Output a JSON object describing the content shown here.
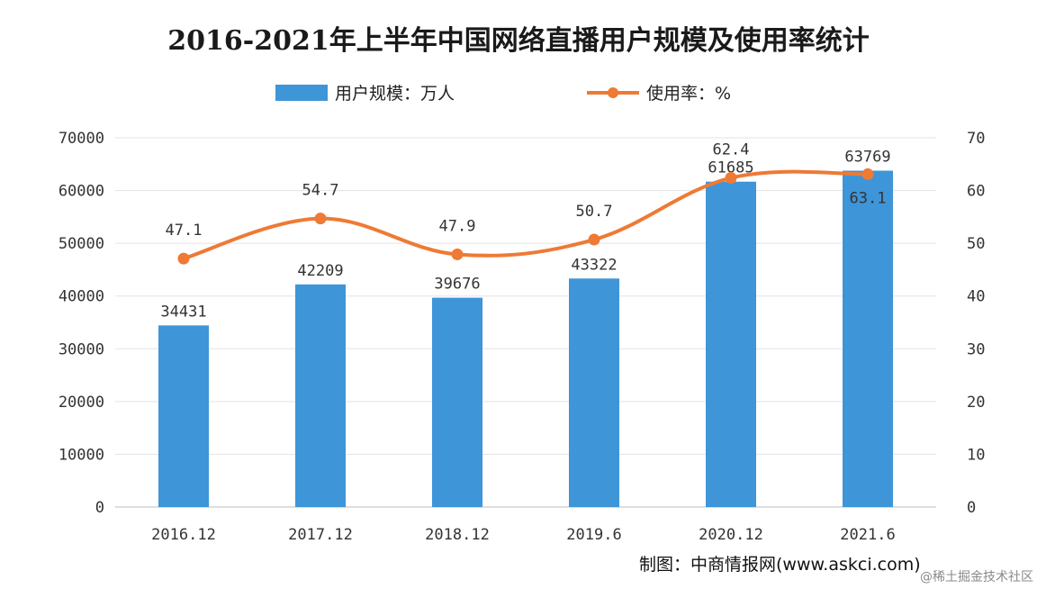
{
  "chart_data": {
    "type": "bar+line",
    "title": "2016-2021年上半年中国网络直播用户规模及使用率统计",
    "categories": [
      "2016.12",
      "2017.12",
      "2018.12",
      "2019.6",
      "2020.12",
      "2021.6"
    ],
    "series": [
      {
        "name": "用户规模：万人",
        "type": "bar",
        "axis": "left",
        "color": "#3e95d8",
        "values": [
          34431,
          42209,
          39676,
          43322,
          61685,
          63769
        ]
      },
      {
        "name": "使用率：%",
        "type": "line",
        "axis": "right",
        "color": "#ee7a35",
        "values": [
          47.1,
          54.7,
          47.9,
          50.7,
          62.4,
          63.1
        ]
      }
    ],
    "y_left": {
      "min": 0,
      "max": 70000,
      "ticks": [
        "0",
        "10000",
        "20000",
        "30000",
        "40000",
        "50000",
        "60000",
        "70000"
      ]
    },
    "y_right": {
      "min": 0,
      "max": 70,
      "ticks": [
        "0",
        "10",
        "20",
        "30",
        "40",
        "50",
        "60",
        "70"
      ]
    },
    "grid": true,
    "legend": "top-center"
  },
  "source": "制图：中商情报网(www.askci.com)",
  "watermark": "@稀土掘金技术社区"
}
